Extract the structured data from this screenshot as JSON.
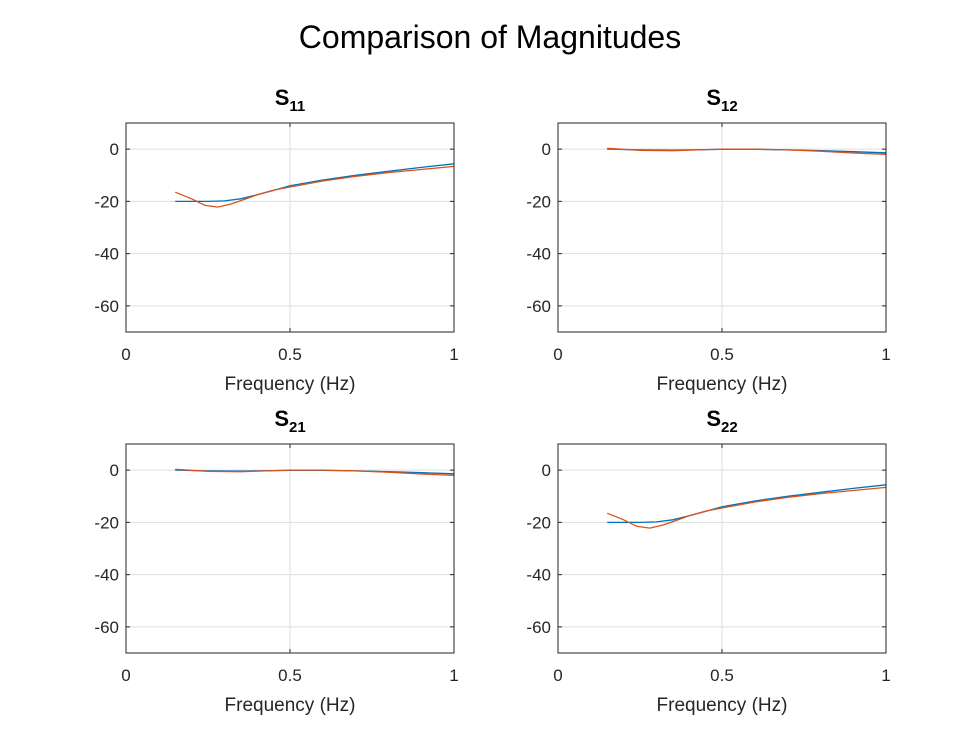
{
  "figure": {
    "title": "Comparison of Magnitudes"
  },
  "colors": {
    "series1": "#0072bd",
    "series2": "#d95319",
    "grid": "#dedede",
    "axes": "#262626"
  },
  "chart_data": [
    {
      "type": "line",
      "title_base": "S",
      "title_sub": "11",
      "xlabel": "Frequency (Hz)",
      "ylabel": "",
      "xlim": [
        0,
        1
      ],
      "ylim": [
        -70,
        10
      ],
      "xticks": [
        0,
        0.5,
        1
      ],
      "xtick_labels": [
        "0",
        "0.5",
        "1"
      ],
      "yticks": [
        0,
        -20,
        -40,
        -60
      ],
      "ytick_labels": [
        "0",
        "-20",
        "-40",
        "-60"
      ],
      "grid": true,
      "series": [
        {
          "x": [
            0.15,
            0.2,
            0.25,
            0.3,
            0.35,
            0.4,
            0.45,
            0.5,
            0.6,
            0.7,
            0.8,
            0.9,
            1.0
          ],
          "y": [
            -20,
            -20,
            -20,
            -19.8,
            -19,
            -17.5,
            -15.8,
            -14,
            -11.8,
            -10,
            -8.5,
            -7,
            -5.6
          ]
        },
        {
          "x": [
            0.15,
            0.2,
            0.24,
            0.28,
            0.32,
            0.36,
            0.4,
            0.45,
            0.5,
            0.6,
            0.7,
            0.8,
            0.9,
            1.0
          ],
          "y": [
            -16.5,
            -19,
            -21.5,
            -22.2,
            -21,
            -19.3,
            -17.5,
            -15.7,
            -14.5,
            -12.2,
            -10.4,
            -9,
            -7.8,
            -6.6
          ]
        }
      ]
    },
    {
      "type": "line",
      "title_base": "S",
      "title_sub": "12",
      "xlabel": "Frequency (Hz)",
      "ylabel": "",
      "xlim": [
        0,
        1
      ],
      "ylim": [
        -70,
        10
      ],
      "xticks": [
        0,
        0.5,
        1
      ],
      "xtick_labels": [
        "0",
        "0.5",
        "1"
      ],
      "yticks": [
        0,
        -20,
        -40,
        -60
      ],
      "ytick_labels": [
        "0",
        "-20",
        "-40",
        "-60"
      ],
      "grid": true,
      "series": [
        {
          "x": [
            0.15,
            0.25,
            0.35,
            0.45,
            0.5,
            0.6,
            0.7,
            0.8,
            0.9,
            1.0
          ],
          "y": [
            0,
            -0.3,
            -0.4,
            -0.2,
            -0.1,
            -0.1,
            -0.3,
            -0.6,
            -1.0,
            -1.4
          ]
        },
        {
          "x": [
            0.15,
            0.25,
            0.35,
            0.45,
            0.5,
            0.6,
            0.7,
            0.8,
            0.9,
            1.0
          ],
          "y": [
            0.3,
            -0.5,
            -0.6,
            -0.2,
            0,
            0,
            -0.3,
            -0.8,
            -1.5,
            -2.0
          ]
        }
      ]
    },
    {
      "type": "line",
      "title_base": "S",
      "title_sub": "21",
      "xlabel": "Frequency (Hz)",
      "ylabel": "",
      "xlim": [
        0,
        1
      ],
      "ylim": [
        -70,
        10
      ],
      "xticks": [
        0,
        0.5,
        1
      ],
      "xtick_labels": [
        "0",
        "0.5",
        "1"
      ],
      "yticks": [
        0,
        -20,
        -40,
        -60
      ],
      "ytick_labels": [
        "0",
        "-20",
        "-40",
        "-60"
      ],
      "grid": true,
      "series": [
        {
          "x": [
            0.15,
            0.25,
            0.35,
            0.45,
            0.5,
            0.6,
            0.7,
            0.8,
            0.9,
            1.0
          ],
          "y": [
            0,
            -0.3,
            -0.4,
            -0.2,
            -0.1,
            -0.1,
            -0.3,
            -0.6,
            -1.0,
            -1.4
          ]
        },
        {
          "x": [
            0.15,
            0.25,
            0.35,
            0.45,
            0.5,
            0.6,
            0.7,
            0.8,
            0.9,
            1.0
          ],
          "y": [
            0.3,
            -0.5,
            -0.6,
            -0.2,
            0,
            0,
            -0.3,
            -0.8,
            -1.5,
            -2.0
          ]
        }
      ]
    },
    {
      "type": "line",
      "title_base": "S",
      "title_sub": "22",
      "xlabel": "Frequency (Hz)",
      "ylabel": "",
      "xlim": [
        0,
        1
      ],
      "ylim": [
        -70,
        10
      ],
      "xticks": [
        0,
        0.5,
        1
      ],
      "xtick_labels": [
        "0",
        "0.5",
        "1"
      ],
      "yticks": [
        0,
        -20,
        -40,
        -60
      ],
      "ytick_labels": [
        "0",
        "-20",
        "-40",
        "-60"
      ],
      "grid": true,
      "series": [
        {
          "x": [
            0.15,
            0.2,
            0.25,
            0.3,
            0.35,
            0.4,
            0.45,
            0.5,
            0.6,
            0.7,
            0.8,
            0.9,
            1.0
          ],
          "y": [
            -20,
            -20,
            -20,
            -19.8,
            -19,
            -17.5,
            -15.8,
            -14,
            -11.8,
            -10,
            -8.5,
            -7,
            -5.6
          ]
        },
        {
          "x": [
            0.15,
            0.2,
            0.24,
            0.28,
            0.32,
            0.36,
            0.4,
            0.45,
            0.5,
            0.6,
            0.7,
            0.8,
            0.9,
            1.0
          ],
          "y": [
            -16.5,
            -19,
            -21.5,
            -22.2,
            -21,
            -19.3,
            -17.5,
            -15.7,
            -14.5,
            -12.2,
            -10.4,
            -9,
            -7.8,
            -6.6
          ]
        }
      ]
    }
  ]
}
